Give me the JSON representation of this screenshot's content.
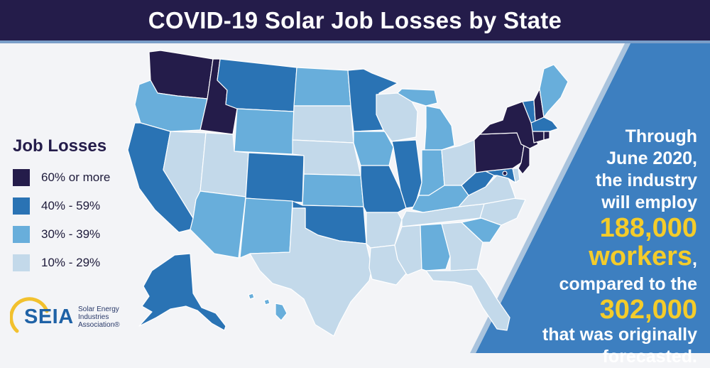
{
  "title": "COVID-19 Solar Job Losses by State",
  "legend": {
    "title": "Job Losses",
    "items": [
      {
        "label": "60% or more",
        "color": "#241c4a"
      },
      {
        "label": "40% - 59%",
        "color": "#2a73b4"
      },
      {
        "label": "30% - 39%",
        "color": "#68aedb"
      },
      {
        "label": "10% - 29%",
        "color": "#c3d9ea"
      }
    ]
  },
  "callout": {
    "line1": "Through",
    "line2": "June 2020,",
    "line3": "the industry",
    "line4": "will employ",
    "number1": "188,000",
    "word1": "workers",
    "comma": ",",
    "line5": "compared to the",
    "number2": "302,000",
    "line6": "that was originally",
    "line7": "forecasted."
  },
  "logo": {
    "wordmark": "SEIA",
    "sub1": "Solar Energy",
    "sub2": "Industries",
    "sub3": "Association®"
  },
  "colors": {
    "header_bg": "#241c4a",
    "panel_bg": "#3d7fc0",
    "highlight": "#f4cc2a",
    "border": "#ffffff"
  },
  "states": [
    {
      "name": "Washington",
      "category": "60% or more"
    },
    {
      "name": "Oregon",
      "category": "30% - 39%"
    },
    {
      "name": "California",
      "category": "40% - 59%"
    },
    {
      "name": "Idaho",
      "category": "60% or more"
    },
    {
      "name": "Nevada",
      "category": "10% - 29%"
    },
    {
      "name": "Montana",
      "category": "40% - 59%"
    },
    {
      "name": "Wyoming",
      "category": "30% - 39%"
    },
    {
      "name": "Utah",
      "category": "10% - 29%"
    },
    {
      "name": "Arizona",
      "category": "30% - 39%"
    },
    {
      "name": "Colorado",
      "category": "40% - 59%"
    },
    {
      "name": "New Mexico",
      "category": "30% - 39%"
    },
    {
      "name": "North Dakota",
      "category": "30% - 39%"
    },
    {
      "name": "South Dakota",
      "category": "10% - 29%"
    },
    {
      "name": "Nebraska",
      "category": "10% - 29%"
    },
    {
      "name": "Kansas",
      "category": "30% - 39%"
    },
    {
      "name": "Oklahoma",
      "category": "40% - 59%"
    },
    {
      "name": "Texas",
      "category": "10% - 29%"
    },
    {
      "name": "Minnesota",
      "category": "40% - 59%"
    },
    {
      "name": "Iowa",
      "category": "30% - 39%"
    },
    {
      "name": "Missouri",
      "category": "40% - 59%"
    },
    {
      "name": "Arkansas",
      "category": "10% - 29%"
    },
    {
      "name": "Louisiana",
      "category": "10% - 29%"
    },
    {
      "name": "Wisconsin",
      "category": "10% - 29%"
    },
    {
      "name": "Illinois",
      "category": "40% - 59%"
    },
    {
      "name": "Michigan",
      "category": "30% - 39%"
    },
    {
      "name": "Indiana",
      "category": "30% - 39%"
    },
    {
      "name": "Ohio",
      "category": "10% - 29%"
    },
    {
      "name": "Kentucky",
      "category": "30% - 39%"
    },
    {
      "name": "Tennessee",
      "category": "10% - 29%"
    },
    {
      "name": "Mississippi",
      "category": "10% - 29%"
    },
    {
      "name": "Alabama",
      "category": "30% - 39%"
    },
    {
      "name": "Georgia",
      "category": "10% - 29%"
    },
    {
      "name": "Florida",
      "category": "10% - 29%"
    },
    {
      "name": "South Carolina",
      "category": "30% - 39%"
    },
    {
      "name": "North Carolina",
      "category": "10% - 29%"
    },
    {
      "name": "Virginia",
      "category": "10% - 29%"
    },
    {
      "name": "West Virginia",
      "category": "40% - 59%"
    },
    {
      "name": "Maryland",
      "category": "40% - 59%"
    },
    {
      "name": "Delaware",
      "category": "10% - 29%"
    },
    {
      "name": "Pennsylvania",
      "category": "60% or more"
    },
    {
      "name": "New Jersey",
      "category": "60% or more"
    },
    {
      "name": "New York",
      "category": "60% or more"
    },
    {
      "name": "Vermont",
      "category": "40% - 59%"
    },
    {
      "name": "New Hampshire",
      "category": "60% or more"
    },
    {
      "name": "Maine",
      "category": "30% - 39%"
    },
    {
      "name": "Massachusetts",
      "category": "40% - 59%"
    },
    {
      "name": "Connecticut",
      "category": "60% or more"
    },
    {
      "name": "Rhode Island",
      "category": "60% or more"
    },
    {
      "name": "District of Columbia",
      "category": "60% or more"
    },
    {
      "name": "Alaska",
      "category": "40% - 59%"
    },
    {
      "name": "Hawaii",
      "category": "30% - 39%"
    }
  ]
}
